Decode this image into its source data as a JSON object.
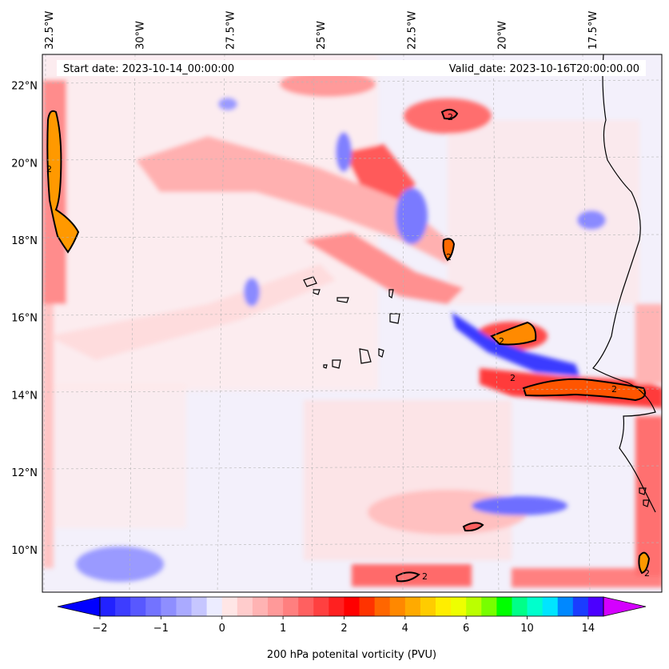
{
  "chart_data": {
    "type": "heatmap",
    "title": "",
    "start_date_text": "Start date: 2023-10-14_00:00:00",
    "valid_date_text": "Valid_date: 2023-10-16T20:00:00.00",
    "colorbar_label": "200 hPa potenital vorticity (PVU)",
    "colorbar_ticks": [
      "−2",
      "−1",
      "0",
      "1",
      "2",
      "4",
      "6",
      "10",
      "14"
    ],
    "colorbar_levels": [
      -2,
      -1.75,
      -1.5,
      -1.25,
      -1,
      -0.75,
      -0.5,
      -0.25,
      0,
      0.25,
      0.5,
      0.75,
      1,
      1.25,
      1.5,
      1.75,
      2,
      2.5,
      3,
      3.5,
      4,
      4.5,
      5,
      5.5,
      6,
      7,
      8,
      9,
      10,
      11,
      12,
      13,
      14,
      15
    ],
    "colorbar_extend": "both",
    "lon_range": [
      -32.7,
      -15.6
    ],
    "lat_range": [
      8.9,
      22.8
    ],
    "lon_ticks": [
      {
        "value": -32.5,
        "label": "32.5°W"
      },
      {
        "value": -30,
        "label": "30°W"
      },
      {
        "value": -27.5,
        "label": "27.5°W"
      },
      {
        "value": -25,
        "label": "25°W"
      },
      {
        "value": -22.5,
        "label": "22.5°W"
      },
      {
        "value": -20,
        "label": "20°W"
      },
      {
        "value": -17.5,
        "label": "17.5°W"
      }
    ],
    "lat_ticks": [
      {
        "value": 22,
        "label": "22°N"
      },
      {
        "value": 20,
        "label": "20°N"
      },
      {
        "value": 18,
        "label": "18°N"
      },
      {
        "value": 16,
        "label": "16°N"
      },
      {
        "value": 14,
        "label": "14°N"
      },
      {
        "value": 12,
        "label": "12°N"
      },
      {
        "value": 10,
        "label": "10°N"
      }
    ],
    "contour_level": 2,
    "grid": true,
    "colors": {
      "neg_extend": "#0000ff",
      "pos_extend": "#d400ff",
      "coast": "#000000",
      "contour": "#000000"
    }
  },
  "colorbar_colors": [
    "#2222ff",
    "#3d3dff",
    "#5858ff",
    "#7373ff",
    "#8e8eff",
    "#aaaaff",
    "#c6c6ff",
    "#ececff",
    "#ffe6e6",
    "#ffcccc",
    "#ffb3b3",
    "#ff9999",
    "#ff7f7f",
    "#ff6060",
    "#ff4040",
    "#ff2020",
    "#ff0000",
    "#ff3300",
    "#ff6600",
    "#ff8800",
    "#ffaa00",
    "#ffcc00",
    "#ffee00",
    "#eeff00",
    "#bbff00",
    "#77ff00",
    "#00ff00",
    "#00ff88",
    "#00ffcc",
    "#00e5ff",
    "#0088ff",
    "#1a3dff",
    "#4b00ff"
  ]
}
